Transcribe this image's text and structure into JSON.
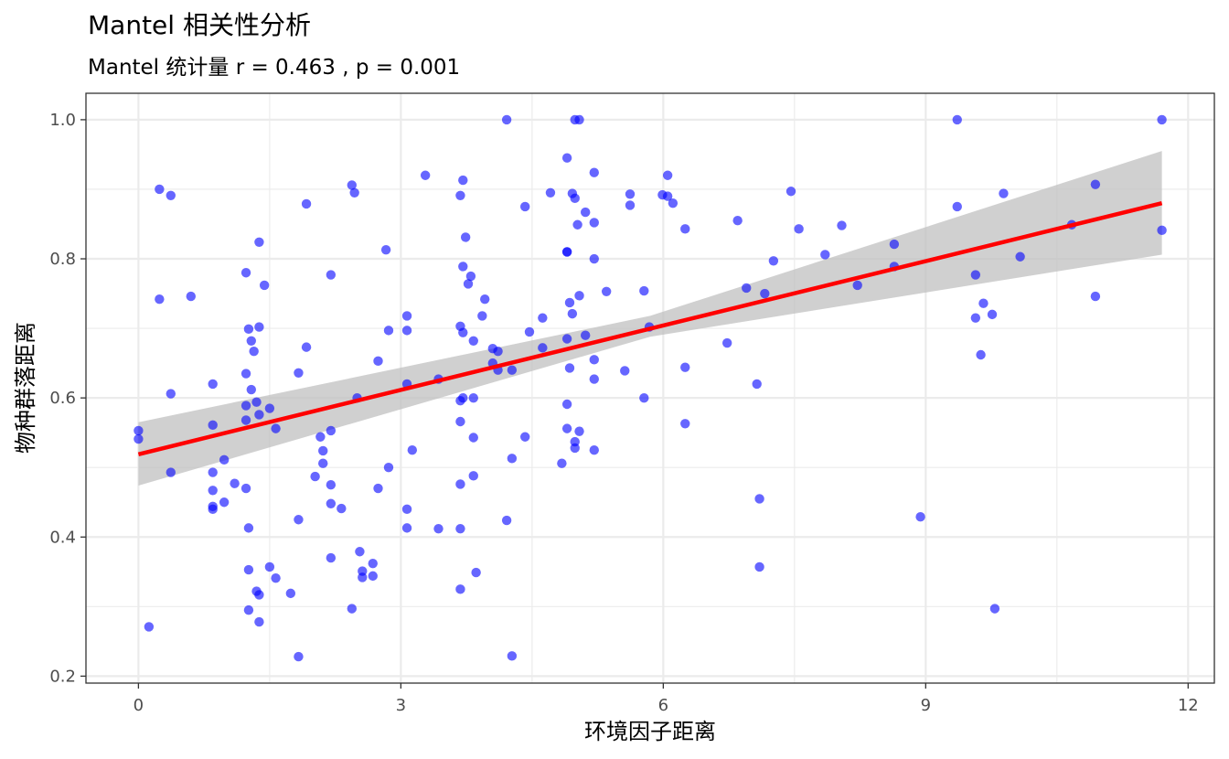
{
  "chart_data": {
    "type": "scatter",
    "title": "Mantel 相关性分析",
    "subtitle": "Mantel 统计量 r = 0.463 , p = 0.001",
    "xlabel": "环境因子距离",
    "ylabel": "物种群落距离",
    "xlim": [
      -0.6,
      12.3
    ],
    "ylim": [
      0.19,
      1.038
    ],
    "x_ticks": [
      0,
      3,
      6,
      9,
      12
    ],
    "y_ticks": [
      0.2,
      0.4,
      0.6,
      0.8,
      1.0
    ],
    "x_tick_labels": [
      "0",
      "3",
      "6",
      "9",
      "12"
    ],
    "y_tick_labels": [
      "0.2",
      "0.4",
      "0.6",
      "0.8",
      "1.0"
    ],
    "grid": true,
    "colors": {
      "points": "#0000ff",
      "fit_line": "#ff0000",
      "confidence_band": "#bebebe",
      "grid": "#ebebeb",
      "panel_border": "#333333"
    },
    "fit_line": {
      "x": [
        0,
        11.7
      ],
      "y": [
        0.519,
        0.88
      ]
    },
    "confidence_band": {
      "x": [
        0,
        5.85,
        11.7
      ],
      "lower": [
        0.474,
        0.688,
        0.806
      ],
      "upper": [
        0.565,
        0.718,
        0.955
      ]
    },
    "points": [
      [
        0.0,
        0.553
      ],
      [
        0.0,
        0.541
      ],
      [
        0.12,
        0.271
      ],
      [
        0.24,
        0.9
      ],
      [
        0.24,
        0.742
      ],
      [
        0.37,
        0.891
      ],
      [
        0.37,
        0.606
      ],
      [
        0.37,
        0.493
      ],
      [
        0.6,
        0.746
      ],
      [
        0.85,
        0.62
      ],
      [
        0.85,
        0.561
      ],
      [
        0.85,
        0.493
      ],
      [
        0.85,
        0.467
      ],
      [
        0.85,
        0.444
      ],
      [
        0.85,
        0.44
      ],
      [
        0.98,
        0.511
      ],
      [
        0.98,
        0.45
      ],
      [
        1.1,
        0.477
      ],
      [
        1.23,
        0.78
      ],
      [
        1.23,
        0.635
      ],
      [
        1.23,
        0.589
      ],
      [
        1.23,
        0.568
      ],
      [
        1.23,
        0.47
      ],
      [
        1.26,
        0.699
      ],
      [
        1.26,
        0.413
      ],
      [
        1.26,
        0.353
      ],
      [
        1.26,
        0.295
      ],
      [
        1.29,
        0.682
      ],
      [
        1.29,
        0.612
      ],
      [
        1.32,
        0.667
      ],
      [
        1.35,
        0.594
      ],
      [
        1.35,
        0.322
      ],
      [
        1.38,
        0.824
      ],
      [
        1.38,
        0.702
      ],
      [
        1.38,
        0.576
      ],
      [
        1.38,
        0.317
      ],
      [
        1.38,
        0.278
      ],
      [
        1.44,
        0.762
      ],
      [
        1.5,
        0.585
      ],
      [
        1.5,
        0.357
      ],
      [
        1.57,
        0.556
      ],
      [
        1.57,
        0.341
      ],
      [
        1.74,
        0.319
      ],
      [
        1.83,
        0.636
      ],
      [
        1.83,
        0.425
      ],
      [
        1.83,
        0.228
      ],
      [
        1.92,
        0.879
      ],
      [
        1.92,
        0.673
      ],
      [
        2.02,
        0.487
      ],
      [
        2.08,
        0.544
      ],
      [
        2.11,
        0.524
      ],
      [
        2.11,
        0.506
      ],
      [
        2.2,
        0.777
      ],
      [
        2.2,
        0.553
      ],
      [
        2.2,
        0.475
      ],
      [
        2.2,
        0.448
      ],
      [
        2.2,
        0.37
      ],
      [
        2.32,
        0.441
      ],
      [
        2.44,
        0.906
      ],
      [
        2.44,
        0.297
      ],
      [
        2.47,
        0.895
      ],
      [
        2.5,
        0.6
      ],
      [
        2.53,
        0.379
      ],
      [
        2.56,
        0.351
      ],
      [
        2.56,
        0.342
      ],
      [
        2.68,
        0.362
      ],
      [
        2.68,
        0.344
      ],
      [
        2.74,
        0.653
      ],
      [
        2.74,
        0.47
      ],
      [
        2.83,
        0.813
      ],
      [
        2.86,
        0.697
      ],
      [
        2.86,
        0.5
      ],
      [
        3.07,
        0.718
      ],
      [
        3.07,
        0.697
      ],
      [
        3.07,
        0.62
      ],
      [
        3.07,
        0.44
      ],
      [
        3.07,
        0.413
      ],
      [
        3.13,
        0.525
      ],
      [
        3.28,
        0.92
      ],
      [
        3.43,
        0.627
      ],
      [
        3.43,
        0.412
      ],
      [
        3.68,
        0.891
      ],
      [
        3.68,
        0.703
      ],
      [
        3.68,
        0.596
      ],
      [
        3.68,
        0.566
      ],
      [
        3.68,
        0.476
      ],
      [
        3.68,
        0.412
      ],
      [
        3.68,
        0.325
      ],
      [
        3.71,
        0.913
      ],
      [
        3.71,
        0.789
      ],
      [
        3.71,
        0.694
      ],
      [
        3.71,
        0.6
      ],
      [
        3.74,
        0.831
      ],
      [
        3.77,
        0.764
      ],
      [
        3.8,
        0.775
      ],
      [
        3.83,
        0.682
      ],
      [
        3.83,
        0.6
      ],
      [
        3.83,
        0.543
      ],
      [
        3.83,
        0.488
      ],
      [
        3.86,
        0.349
      ],
      [
        3.93,
        0.718
      ],
      [
        3.96,
        0.742
      ],
      [
        4.05,
        0.671
      ],
      [
        4.05,
        0.65
      ],
      [
        4.11,
        0.667
      ],
      [
        4.11,
        0.64
      ],
      [
        4.21,
        1.0
      ],
      [
        4.21,
        0.424
      ],
      [
        4.27,
        0.64
      ],
      [
        4.27,
        0.513
      ],
      [
        4.27,
        0.229
      ],
      [
        4.42,
        0.875
      ],
      [
        4.42,
        0.544
      ],
      [
        4.47,
        0.695
      ],
      [
        4.62,
        0.715
      ],
      [
        4.62,
        0.672
      ],
      [
        4.71,
        0.895
      ],
      [
        4.84,
        0.506
      ],
      [
        4.9,
        0.945
      ],
      [
        4.9,
        0.81
      ],
      [
        4.9,
        0.81
      ],
      [
        4.9,
        0.685
      ],
      [
        4.9,
        0.591
      ],
      [
        4.9,
        0.556
      ],
      [
        4.93,
        0.643
      ],
      [
        4.93,
        0.737
      ],
      [
        4.96,
        0.894
      ],
      [
        4.96,
        0.721
      ],
      [
        4.99,
        1.0
      ],
      [
        4.99,
        0.887
      ],
      [
        4.99,
        0.537
      ],
      [
        4.99,
        0.528
      ],
      [
        5.02,
        0.849
      ],
      [
        5.04,
        1.0
      ],
      [
        5.04,
        0.747
      ],
      [
        5.04,
        0.552
      ],
      [
        5.11,
        0.867
      ],
      [
        5.11,
        0.69
      ],
      [
        5.21,
        0.924
      ],
      [
        5.21,
        0.852
      ],
      [
        5.21,
        0.8
      ],
      [
        5.21,
        0.655
      ],
      [
        5.21,
        0.627
      ],
      [
        5.21,
        0.525
      ],
      [
        5.35,
        0.753
      ],
      [
        5.56,
        0.639
      ],
      [
        5.62,
        0.893
      ],
      [
        5.62,
        0.877
      ],
      [
        5.78,
        0.754
      ],
      [
        5.78,
        0.6
      ],
      [
        5.84,
        0.702
      ],
      [
        5.99,
        0.892
      ],
      [
        6.05,
        0.92
      ],
      [
        6.05,
        0.89
      ],
      [
        6.11,
        0.88
      ],
      [
        6.25,
        0.843
      ],
      [
        6.25,
        0.644
      ],
      [
        6.25,
        0.563
      ],
      [
        6.73,
        0.679
      ],
      [
        6.85,
        0.855
      ],
      [
        6.95,
        0.758
      ],
      [
        7.07,
        0.62
      ],
      [
        7.1,
        0.455
      ],
      [
        7.1,
        0.357
      ],
      [
        7.16,
        0.75
      ],
      [
        7.26,
        0.797
      ],
      [
        7.46,
        0.897
      ],
      [
        7.55,
        0.843
      ],
      [
        7.85,
        0.806
      ],
      [
        8.04,
        0.848
      ],
      [
        8.22,
        0.762
      ],
      [
        8.64,
        0.821
      ],
      [
        8.64,
        0.789
      ],
      [
        8.94,
        0.429
      ],
      [
        9.36,
        1.0
      ],
      [
        9.36,
        0.875
      ],
      [
        9.57,
        0.777
      ],
      [
        9.57,
        0.715
      ],
      [
        9.63,
        0.662
      ],
      [
        9.66,
        0.736
      ],
      [
        9.76,
        0.72
      ],
      [
        9.79,
        0.297
      ],
      [
        9.89,
        0.894
      ],
      [
        10.08,
        0.803
      ],
      [
        10.67,
        0.849
      ],
      [
        10.94,
        0.907
      ],
      [
        10.94,
        0.746
      ],
      [
        11.7,
        1.0
      ],
      [
        11.7,
        0.841
      ]
    ]
  }
}
